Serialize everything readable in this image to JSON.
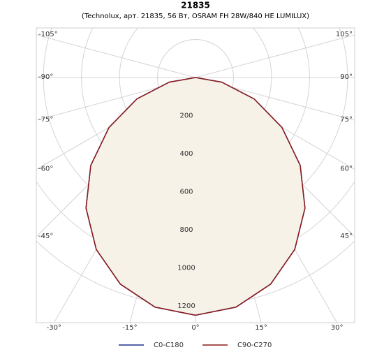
{
  "chart_data": {
    "type": "polar",
    "title": "21835",
    "subtitle": "(Technolux, арт. 21835, 56 Вт, OSRAM FH 28W/840 HE LUMILUX)",
    "angles": [
      -90,
      -80,
      -70,
      -60,
      -50,
      -40,
      -30,
      -20,
      -10,
      0,
      10,
      20,
      30,
      40,
      50,
      60,
      70,
      80,
      90
    ],
    "series": [
      {
        "name": "C0-C180",
        "color": "#1f2e8c",
        "values": [
          0,
          140,
          328,
          525,
          719,
          896,
          1044,
          1156,
          1226,
          1250,
          1226,
          1156,
          1044,
          896,
          719,
          525,
          328,
          140,
          0
        ]
      },
      {
        "name": "C90-C270",
        "color": "#8b1a1a",
        "values": [
          0,
          140,
          328,
          525,
          719,
          896,
          1044,
          1156,
          1226,
          1250,
          1226,
          1156,
          1044,
          896,
          719,
          525,
          328,
          140,
          0
        ]
      }
    ],
    "rlim": [
      0,
      1300
    ],
    "rticks": [
      200,
      400,
      600,
      800,
      1000,
      1200
    ],
    "angle_ticks": [
      {
        "value": -105,
        "label": "-105°"
      },
      {
        "value": -90,
        "label": "-90°"
      },
      {
        "value": -75,
        "label": "-75°"
      },
      {
        "value": -60,
        "label": "-60°"
      },
      {
        "value": -45,
        "label": "-45°"
      },
      {
        "value": -30,
        "label": "-30°"
      },
      {
        "value": -15,
        "label": "-15°"
      },
      {
        "value": 0,
        "label": "0°"
      },
      {
        "value": 15,
        "label": "15°"
      },
      {
        "value": 30,
        "label": "30°"
      },
      {
        "value": 45,
        "label": "45°"
      },
      {
        "value": 60,
        "label": "60°"
      },
      {
        "value": 75,
        "label": "75°"
      },
      {
        "value": 90,
        "label": "90°"
      },
      {
        "value": 105,
        "label": "105°"
      }
    ],
    "fill_color": "#f7f2e8"
  }
}
